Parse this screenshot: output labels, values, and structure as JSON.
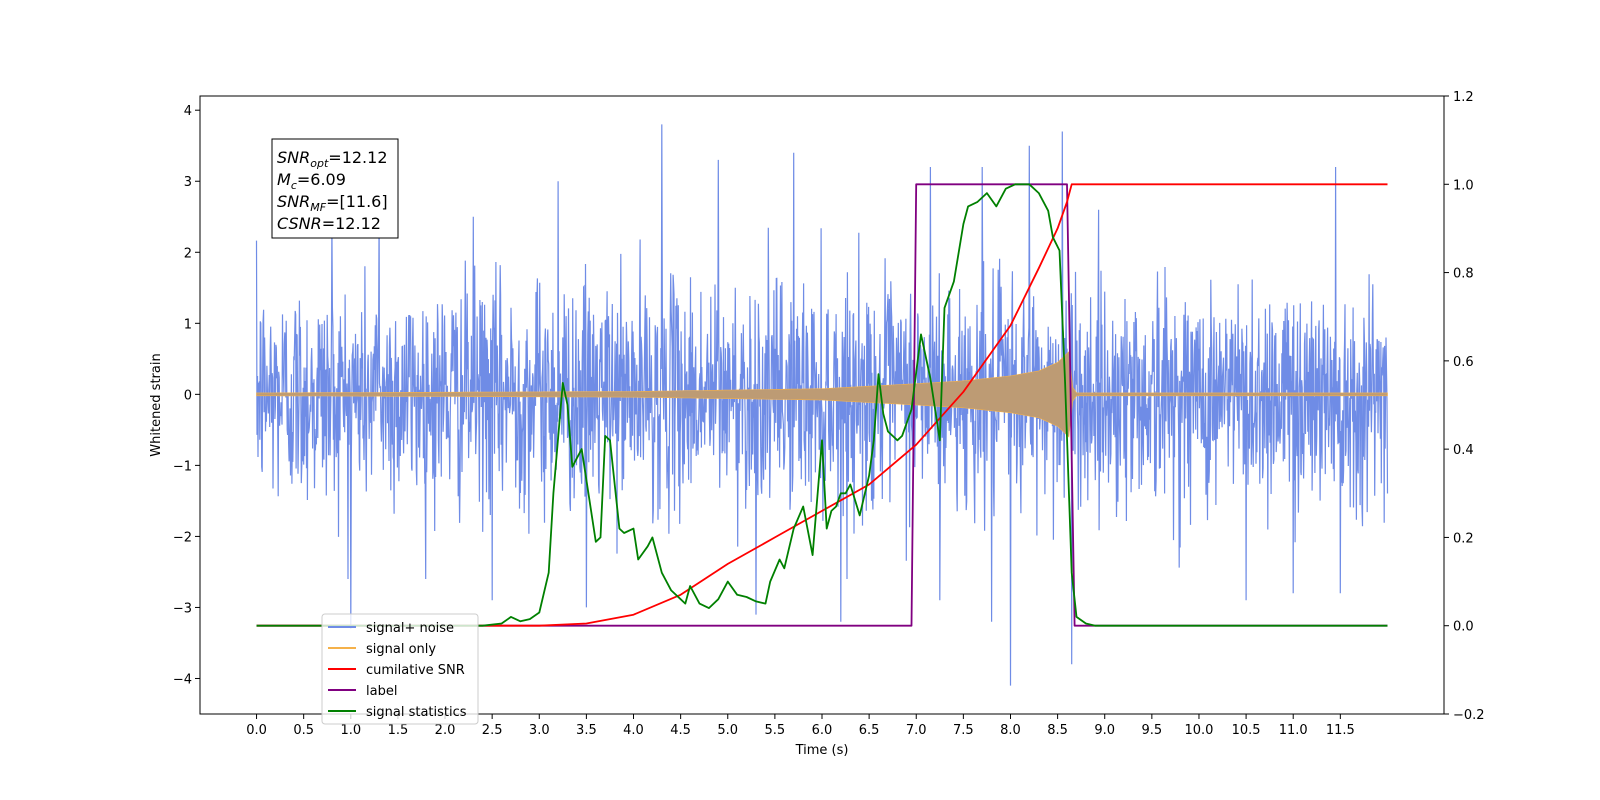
{
  "chart_data": {
    "type": "line",
    "xlabel": "Time (s)",
    "ylabel": "Whitened strain",
    "xlim": [
      -0.6,
      12.6
    ],
    "ylim": [
      -4.5,
      4.2
    ],
    "y2lim": [
      -0.2,
      1.2
    ],
    "x_ticks": [
      0.0,
      0.5,
      1.0,
      1.5,
      2.0,
      2.5,
      3.0,
      3.5,
      4.0,
      4.5,
      5.0,
      5.5,
      6.0,
      6.5,
      7.0,
      7.5,
      8.0,
      8.5,
      9.0,
      9.5,
      10.0,
      10.5,
      11.0,
      11.5
    ],
    "x_tick_labels": [
      "0.0",
      "0.5",
      "1.0",
      "1.5",
      "2.0",
      "2.5",
      "3.0",
      "3.5",
      "4.0",
      "4.5",
      "5.0",
      "5.5",
      "6.0",
      "6.5",
      "7.0",
      "7.5",
      "8.0",
      "8.5",
      "9.0",
      "9.5",
      "10.0",
      "10.5",
      "11.0",
      "11.5"
    ],
    "y_ticks": [
      4,
      3,
      2,
      1,
      0,
      -1,
      -2,
      -3,
      -4
    ],
    "y_tick_labels": [
      "4",
      "3",
      "2",
      "1",
      "0",
      "−1",
      "−2",
      "−3",
      "−4"
    ],
    "y2_ticks": [
      1.2,
      1.0,
      0.8,
      0.6,
      0.4,
      0.2,
      0.0,
      -0.2
    ],
    "y2_tick_labels": [
      "1.2",
      "1.0",
      "0.8",
      "0.6",
      "0.4",
      "0.2",
      "0.0",
      "−0.2"
    ],
    "grid": false,
    "legend_position": "bottom-left",
    "series": [
      {
        "name": "signal+ noise",
        "axis": "left",
        "color": "#6f8ce6",
        "description_x_range": [
          0.0,
          12.0
        ],
        "noise_peaks": [
          [
            0.8,
            2.4
          ],
          [
            1.3,
            2.6
          ],
          [
            2.3,
            2.5
          ],
          [
            3.2,
            3.0
          ],
          [
            4.3,
            3.8
          ],
          [
            4.9,
            3.3
          ],
          [
            5.7,
            3.4
          ],
          [
            7.15,
            3.2
          ],
          [
            7.7,
            3.2
          ],
          [
            8.2,
            3.5
          ],
          [
            8.55,
            3.7
          ],
          [
            11.45,
            3.2
          ]
        ],
        "noise_troughs": [
          [
            1.0,
            -3.3
          ],
          [
            2.5,
            -2.9
          ],
          [
            3.5,
            -3.0
          ],
          [
            5.3,
            -3.1
          ],
          [
            6.2,
            -3.2
          ],
          [
            7.25,
            -2.9
          ],
          [
            7.8,
            -3.2
          ],
          [
            8.0,
            -4.1
          ],
          [
            8.65,
            -3.8
          ],
          [
            10.5,
            -2.9
          ],
          [
            11.0,
            -2.8
          ],
          [
            11.5,
            -2.8
          ]
        ]
      },
      {
        "name": "signal only",
        "axis": "left",
        "color": "#f5b14a",
        "envelope": [
          [
            0.0,
            0.02
          ],
          [
            4.0,
            0.04
          ],
          [
            6.0,
            0.08
          ],
          [
            7.0,
            0.15
          ],
          [
            7.5,
            0.19
          ],
          [
            8.0,
            0.26
          ],
          [
            8.3,
            0.33
          ],
          [
            8.5,
            0.45
          ],
          [
            8.62,
            0.6
          ],
          [
            8.66,
            0.1
          ],
          [
            8.7,
            0.02
          ],
          [
            12.0,
            0.02
          ]
        ]
      },
      {
        "name": "cumilative SNR",
        "axis": "right",
        "color": "#ff0000",
        "points": [
          [
            0.0,
            0.0
          ],
          [
            3.0,
            0.0
          ],
          [
            3.5,
            0.005
          ],
          [
            4.0,
            0.025
          ],
          [
            4.5,
            0.07
          ],
          [
            5.0,
            0.14
          ],
          [
            5.5,
            0.2
          ],
          [
            6.0,
            0.26
          ],
          [
            6.5,
            0.32
          ],
          [
            7.0,
            0.41
          ],
          [
            7.5,
            0.53
          ],
          [
            8.0,
            0.68
          ],
          [
            8.3,
            0.81
          ],
          [
            8.5,
            0.9
          ],
          [
            8.6,
            0.96
          ],
          [
            8.65,
            1.0
          ],
          [
            12.0,
            1.0
          ]
        ]
      },
      {
        "name": "label",
        "axis": "right",
        "color": "#800080",
        "points": [
          [
            0.0,
            0.0
          ],
          [
            6.95,
            0.0
          ],
          [
            7.0,
            1.0
          ],
          [
            8.6,
            1.0
          ],
          [
            8.68,
            0.0
          ],
          [
            12.0,
            0.0
          ]
        ]
      },
      {
        "name": "signal statistics",
        "axis": "right",
        "color": "#008000",
        "points": [
          [
            0.0,
            0.0
          ],
          [
            2.4,
            0.0
          ],
          [
            2.6,
            0.005
          ],
          [
            2.7,
            0.02
          ],
          [
            2.8,
            0.01
          ],
          [
            2.9,
            0.015
          ],
          [
            3.0,
            0.03
          ],
          [
            3.1,
            0.12
          ],
          [
            3.15,
            0.3
          ],
          [
            3.25,
            0.55
          ],
          [
            3.3,
            0.5
          ],
          [
            3.35,
            0.36
          ],
          [
            3.45,
            0.4
          ],
          [
            3.55,
            0.26
          ],
          [
            3.6,
            0.19
          ],
          [
            3.65,
            0.2
          ],
          [
            3.7,
            0.43
          ],
          [
            3.75,
            0.42
          ],
          [
            3.85,
            0.22
          ],
          [
            3.9,
            0.21
          ],
          [
            4.0,
            0.22
          ],
          [
            4.05,
            0.15
          ],
          [
            4.15,
            0.18
          ],
          [
            4.2,
            0.2
          ],
          [
            4.3,
            0.12
          ],
          [
            4.4,
            0.08
          ],
          [
            4.5,
            0.06
          ],
          [
            4.55,
            0.05
          ],
          [
            4.6,
            0.09
          ],
          [
            4.7,
            0.05
          ],
          [
            4.8,
            0.04
          ],
          [
            4.9,
            0.06
          ],
          [
            5.0,
            0.1
          ],
          [
            5.1,
            0.07
          ],
          [
            5.2,
            0.065
          ],
          [
            5.3,
            0.055
          ],
          [
            5.4,
            0.05
          ],
          [
            5.45,
            0.1
          ],
          [
            5.55,
            0.15
          ],
          [
            5.6,
            0.13
          ],
          [
            5.7,
            0.22
          ],
          [
            5.8,
            0.27
          ],
          [
            5.9,
            0.16
          ],
          [
            6.0,
            0.42
          ],
          [
            6.05,
            0.22
          ],
          [
            6.1,
            0.26
          ],
          [
            6.15,
            0.27
          ],
          [
            6.2,
            0.3
          ],
          [
            6.25,
            0.3
          ],
          [
            6.3,
            0.32
          ],
          [
            6.4,
            0.25
          ],
          [
            6.5,
            0.34
          ],
          [
            6.55,
            0.42
          ],
          [
            6.6,
            0.57
          ],
          [
            6.65,
            0.48
          ],
          [
            6.7,
            0.44
          ],
          [
            6.8,
            0.42
          ],
          [
            6.85,
            0.43
          ],
          [
            6.95,
            0.49
          ],
          [
            7.05,
            0.66
          ],
          [
            7.15,
            0.56
          ],
          [
            7.25,
            0.42
          ],
          [
            7.3,
            0.72
          ],
          [
            7.4,
            0.78
          ],
          [
            7.5,
            0.91
          ],
          [
            7.55,
            0.95
          ],
          [
            7.65,
            0.96
          ],
          [
            7.75,
            0.98
          ],
          [
            7.85,
            0.95
          ],
          [
            7.95,
            0.99
          ],
          [
            8.05,
            1.0
          ],
          [
            8.2,
            1.0
          ],
          [
            8.3,
            0.98
          ],
          [
            8.4,
            0.94
          ],
          [
            8.45,
            0.88
          ],
          [
            8.52,
            0.85
          ],
          [
            8.58,
            0.55
          ],
          [
            8.65,
            0.12
          ],
          [
            8.7,
            0.02
          ],
          [
            8.8,
            0.005
          ],
          [
            8.9,
            0.0
          ],
          [
            12.0,
            0.0
          ]
        ]
      }
    ],
    "annotation_lines": [
      {
        "main": "SNR",
        "sub": "opt",
        "rest": "=12.12"
      },
      {
        "main": "M",
        "sub": "c",
        "rest": "=6.09"
      },
      {
        "main": "SNR",
        "sub": "MF",
        "rest": "=[11.6]"
      },
      {
        "main": "CSNR",
        "sub": "",
        "rest": "=12.12"
      }
    ],
    "legend": [
      {
        "label": "signal+ noise",
        "color": "#6f8ce6"
      },
      {
        "label": "signal only",
        "color": "#f5b14a"
      },
      {
        "label": "cumilative SNR",
        "color": "#ff0000"
      },
      {
        "label": "label",
        "color": "#800080"
      },
      {
        "label": "signal statistics",
        "color": "#008000"
      }
    ]
  }
}
